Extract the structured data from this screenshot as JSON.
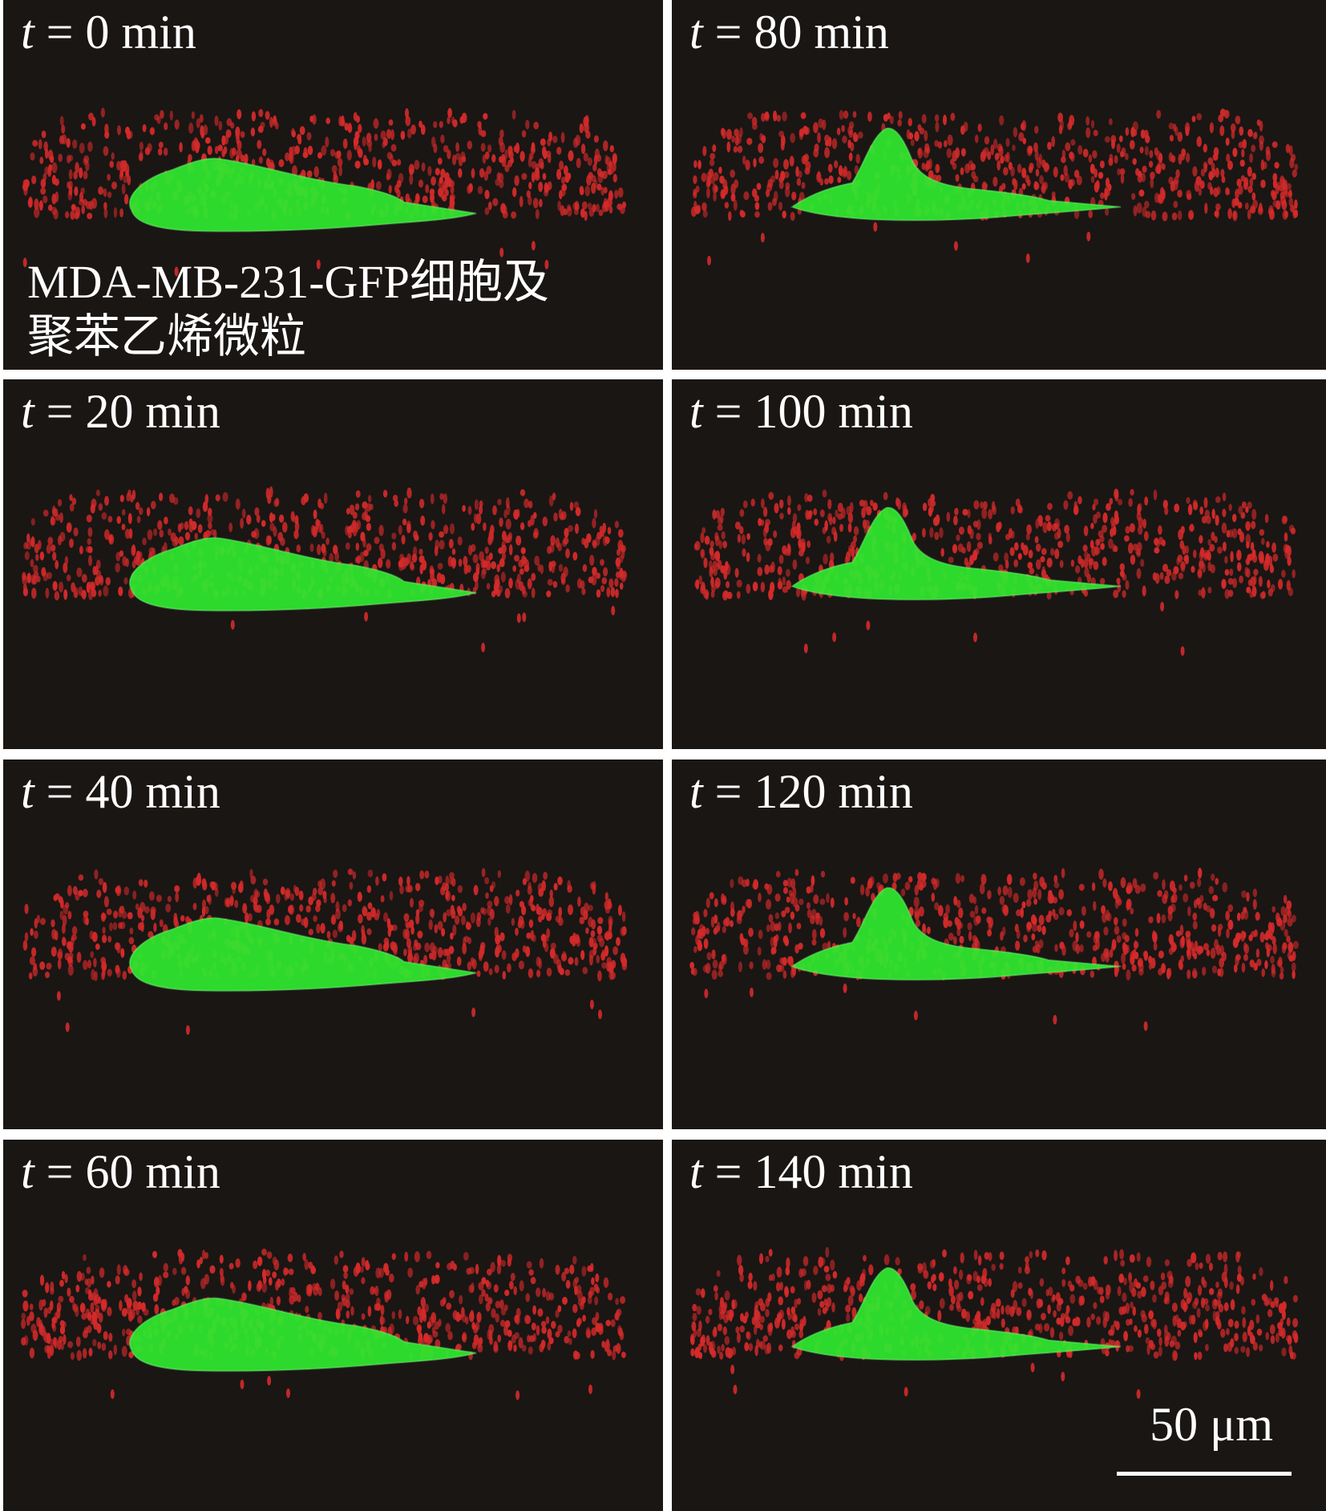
{
  "figure": {
    "caption_lines": [
      "MDA-MB-231-GFP细胞及",
      "聚苯乙烯微粒"
    ],
    "scale_bar_label": "50 μm",
    "background_color": "#1a1614",
    "cell_color": "#2ee82e",
    "particle_color": "#d42a2a"
  },
  "panels": [
    {
      "t_var": "t",
      "rest": " = 0 min"
    },
    {
      "t_var": "t",
      "rest": " = 80 min"
    },
    {
      "t_var": "t",
      "rest": " = 20 min"
    },
    {
      "t_var": "t",
      "rest": " = 100 min"
    },
    {
      "t_var": "t",
      "rest": " = 40 min"
    },
    {
      "t_var": "t",
      "rest": " = 120 min"
    },
    {
      "t_var": "t",
      "rest": " = 60 min"
    },
    {
      "t_var": "t",
      "rest": " = 140 min"
    }
  ]
}
